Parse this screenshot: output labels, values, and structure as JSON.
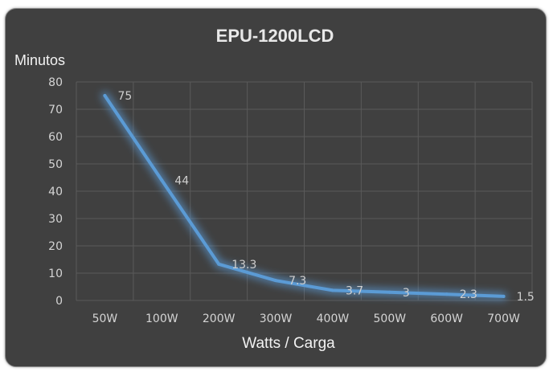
{
  "chart_data": {
    "type": "line",
    "title": "EPU-1200LCD",
    "xlabel": "Watts / Carga",
    "ylabel": "Minutos",
    "categories": [
      "50W",
      "100W",
      "200W",
      "300W",
      "400W",
      "500W",
      "600W",
      "700W"
    ],
    "series": [
      {
        "values": [
          75,
          44,
          13.3,
          7.3,
          3.7,
          3,
          2.3,
          1.5
        ],
        "color": "#5b9bd5"
      }
    ],
    "data_labels": [
      "75",
      "44",
      "13.3",
      "7.3",
      "3.7",
      "3",
      "2.3",
      "1.5"
    ],
    "yticks": [
      "0",
      "10",
      "20",
      "30",
      "40",
      "50",
      "60",
      "70",
      "80"
    ],
    "ylim": [
      0,
      80
    ],
    "grid": true,
    "legend": "none"
  },
  "colors": {
    "background": "#404040",
    "gridline": "#5a5a5a",
    "line": "#5b9bd5"
  }
}
